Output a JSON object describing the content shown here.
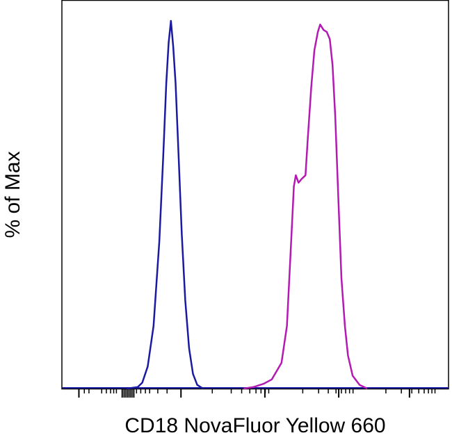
{
  "chart_data": {
    "type": "line",
    "title": "",
    "xlabel": "CD18 NovaFluor Yellow 660",
    "ylabel": "% of Max",
    "x_scale": "biexponential",
    "x_tick_labels": [],
    "y_tick_labels": [],
    "ylim": [
      0,
      100
    ],
    "grid": false,
    "legend": "none",
    "colors": {
      "series_1": "#1a1aa0",
      "series_2": "#b21ab2",
      "axes": "#000000"
    },
    "series": [
      {
        "values": [
          [
            16.8,
            0
          ],
          [
            19.6,
            0.4
          ],
          [
            20.8,
            1.6
          ],
          [
            22.2,
            6
          ],
          [
            23.7,
            17
          ],
          [
            25.2,
            40
          ],
          [
            26.2,
            63
          ],
          [
            27.0,
            83
          ],
          [
            27.6,
            94
          ],
          [
            28.2,
            100
          ],
          [
            28.8,
            93
          ],
          [
            29.4,
            83
          ],
          [
            30.2,
            63
          ],
          [
            31.0,
            42
          ],
          [
            31.9,
            24
          ],
          [
            32.9,
            11
          ],
          [
            33.9,
            4
          ],
          [
            35.0,
            1
          ],
          [
            36.5,
            0
          ]
        ]
      },
      {
        "values": [
          [
            47.0,
            0
          ],
          [
            49.5,
            0.4
          ],
          [
            52.2,
            1.3
          ],
          [
            54.3,
            2.5
          ],
          [
            56.8,
            7
          ],
          [
            58.2,
            17
          ],
          [
            59.3,
            40
          ],
          [
            60.0,
            55
          ],
          [
            60.5,
            58
          ],
          [
            61.2,
            56
          ],
          [
            62.0,
            57
          ],
          [
            63.0,
            58
          ],
          [
            63.6,
            68
          ],
          [
            64.5,
            82
          ],
          [
            65.3,
            92
          ],
          [
            66.2,
            97
          ],
          [
            66.8,
            99
          ],
          [
            67.7,
            97.5
          ],
          [
            68.5,
            97
          ],
          [
            69.3,
            95
          ],
          [
            70.0,
            88
          ],
          [
            70.7,
            74
          ],
          [
            71.5,
            52
          ],
          [
            72.3,
            30
          ],
          [
            73.2,
            17
          ],
          [
            74.0,
            9
          ],
          [
            75.2,
            3.5
          ],
          [
            77.0,
            1
          ],
          [
            79.0,
            0
          ]
        ]
      }
    ]
  }
}
